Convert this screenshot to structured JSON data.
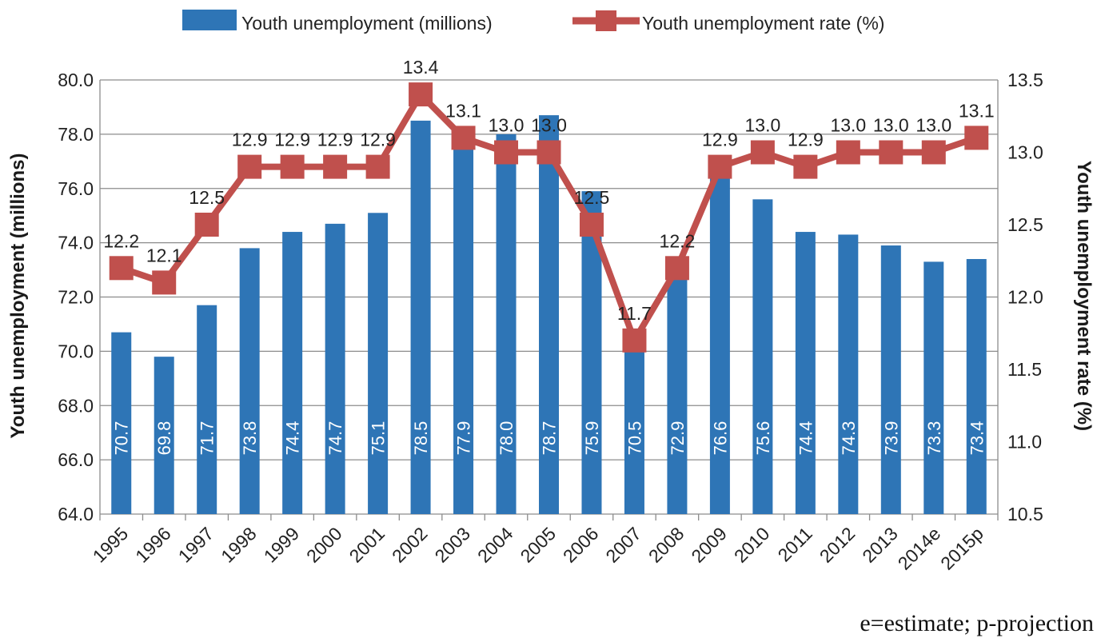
{
  "chart_data": {
    "type": "bar",
    "categories": [
      "1995",
      "1996",
      "1997",
      "1998",
      "1999",
      "2000",
      "2001",
      "2002",
      "2003",
      "2004",
      "2005",
      "2006",
      "2007",
      "2008",
      "2009",
      "2010",
      "2011",
      "2012",
      "2013",
      "2014e",
      "2015p"
    ],
    "series": [
      {
        "name": "Youth unemployment (millions)",
        "type": "bar",
        "axis": "left",
        "color": "#2e75b6",
        "values": [
          70.7,
          69.8,
          71.7,
          73.8,
          74.4,
          74.7,
          75.1,
          78.5,
          77.9,
          78.0,
          78.7,
          75.9,
          70.5,
          72.9,
          76.6,
          75.6,
          74.4,
          74.3,
          73.9,
          73.3,
          73.4
        ],
        "labels": [
          "70.7",
          "69.8",
          "71.7",
          "73.8",
          "74.4",
          "74.7",
          "75.1",
          "78.5",
          "77.9",
          "78.0",
          "78.7",
          "75.9",
          "70.5",
          "72.9",
          "76.6",
          "75.6",
          "74.4",
          "74.3",
          "73.9",
          "73.3",
          "73.4"
        ]
      },
      {
        "name": "Youth unemployment rate (%)",
        "type": "line",
        "axis": "right",
        "color": "#c0504d",
        "values": [
          12.2,
          12.1,
          12.5,
          12.9,
          12.9,
          12.9,
          12.9,
          13.4,
          13.1,
          13.0,
          13.0,
          12.5,
          11.7,
          12.2,
          12.9,
          13.0,
          12.9,
          13.0,
          13.0,
          13.0,
          13.1
        ],
        "labels": [
          "12.2",
          "12.1",
          "12.5",
          "12.9",
          "12.9",
          "12.9",
          "12.9",
          "13.4",
          "13.1",
          "13.0",
          "13.0",
          "12.5",
          "11.7",
          "12.2",
          "12.9",
          "13.0",
          "12.9",
          "13.0",
          "13.0",
          "13.0",
          "13.1"
        ]
      }
    ],
    "ylabel": "Youth unemployment (millions)",
    "y2label": "Youth unemployment rate (%)",
    "ylim": [
      64.0,
      80.0
    ],
    "y2lim": [
      10.5,
      13.5
    ],
    "yticks": [
      "64.0",
      "66.0",
      "68.0",
      "70.0",
      "72.0",
      "74.0",
      "76.0",
      "78.0",
      "80.0"
    ],
    "y2ticks": [
      "10.5",
      "11.0",
      "11.5",
      "12.0",
      "12.5",
      "13.0",
      "13.5"
    ],
    "grid": true,
    "legend": "top"
  },
  "note": "e=estimate; p-projection"
}
